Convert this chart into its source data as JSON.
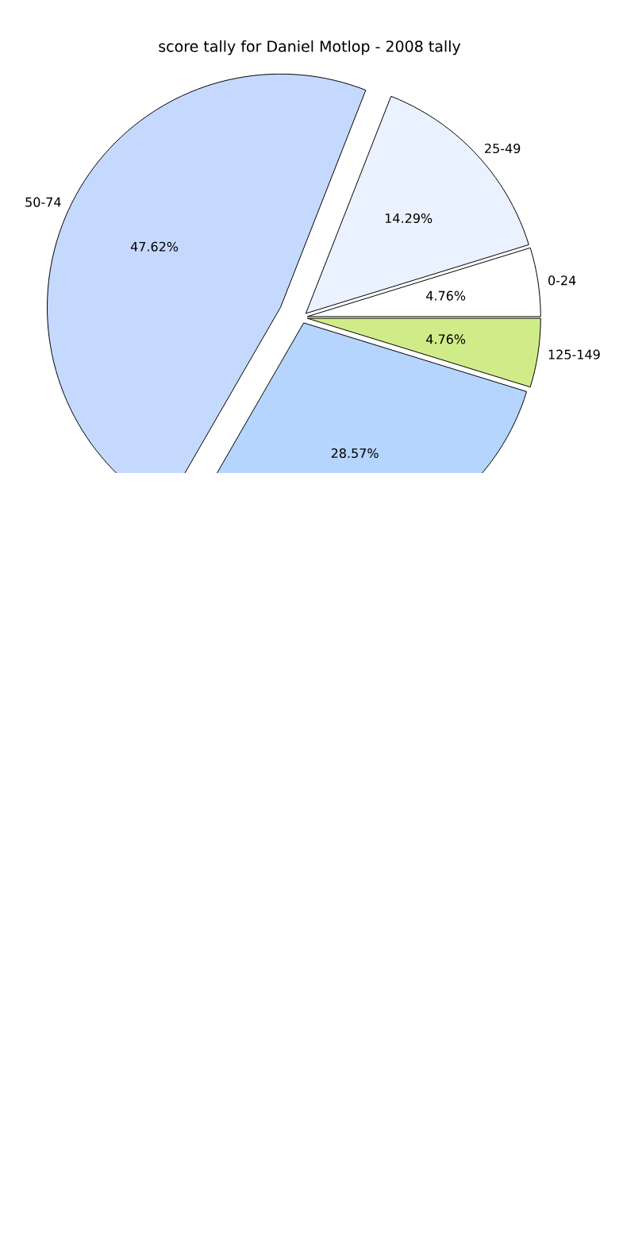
{
  "chart_data": {
    "type": "pie",
    "title": "score tally for Daniel Motlop - 2008 tally",
    "categories": [
      "0-24",
      "25-49",
      "50-74",
      null,
      "125-149"
    ],
    "values": [
      4.76,
      14.29,
      47.62,
      28.57,
      4.76
    ],
    "colors": [
      "#ffffff",
      "#eaf1ff",
      "#c5d9ff",
      "#b5d5ff",
      "#d0ec88"
    ],
    "value_labels": [
      "4.76%",
      "14.29%",
      "47.62%",
      "28.57%",
      "4.76%"
    ]
  }
}
